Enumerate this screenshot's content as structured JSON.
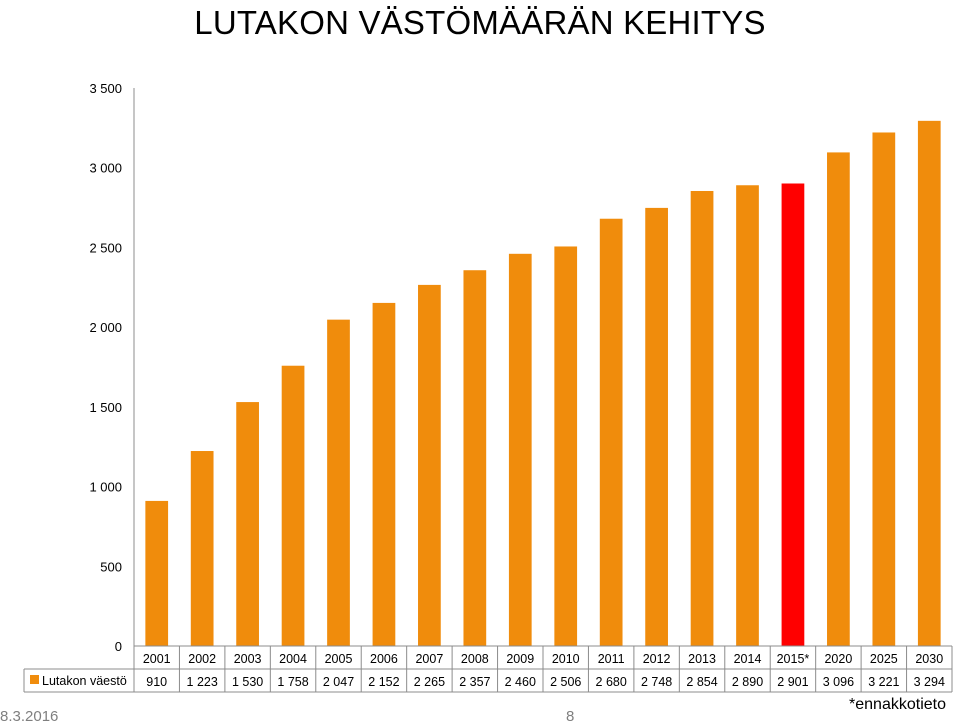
{
  "chart_data": {
    "type": "bar",
    "title": "LUTAKON VÄSTÖMÄÄRÄN KEHITYS",
    "categories": [
      "2001",
      "2002",
      "2003",
      "2004",
      "2005",
      "2006",
      "2007",
      "2008",
      "2009",
      "2010",
      "2011",
      "2012",
      "2013",
      "2014",
      "2015*",
      "2020",
      "2025",
      "2030"
    ],
    "series": [
      {
        "name": "Lutakon väestö",
        "values": [
          910,
          1223,
          1530,
          1758,
          2047,
          2152,
          2265,
          2357,
          2460,
          2506,
          2680,
          2748,
          2854,
          2890,
          2901,
          3096,
          3221,
          3294
        ],
        "value_labels": [
          "910",
          "1 223",
          "1 530",
          "1 758",
          "2 047",
          "2 152",
          "2 265",
          "2 357",
          "2 460",
          "2 506",
          "2 680",
          "2 748",
          "2 854",
          "2 890",
          "2 901",
          "3 096",
          "3 221",
          "3 294"
        ],
        "color": "#f08c0c"
      }
    ],
    "highlight": {
      "category": "2015*",
      "color": "#ff0000"
    },
    "ylim": [
      0,
      3500
    ],
    "yticks": [
      0,
      500,
      1000,
      1500,
      2000,
      2500,
      3000,
      3500
    ],
    "ytick_labels": [
      "0",
      "500",
      "1 000",
      "1 500",
      "2 000",
      "2 500",
      "3 000",
      "3 500"
    ],
    "grid": false,
    "legend": "data-table-left",
    "data_table": true
  },
  "footer": {
    "date": "8.3.2016",
    "page": "8",
    "note": "*ennakkotieto"
  }
}
